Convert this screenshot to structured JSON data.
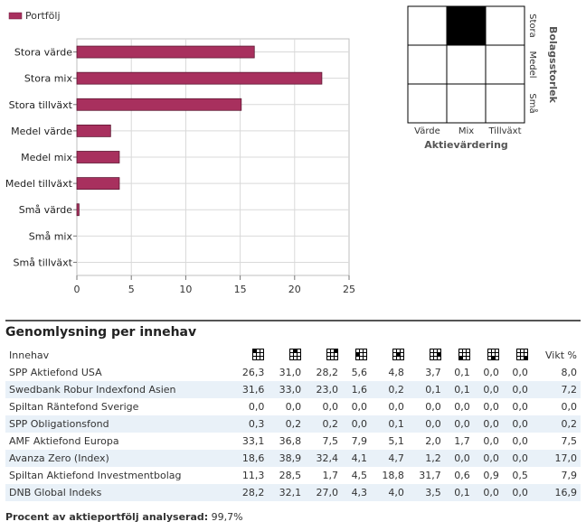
{
  "chart_data": {
    "type": "bar",
    "orientation": "horizontal",
    "legend": [
      "Portfölj"
    ],
    "legend_position": "top-left",
    "categories": [
      "Stora värde",
      "Stora mix",
      "Stora tillväxt",
      "Medel värde",
      "Medel mix",
      "Medel tillväxt",
      "Små värde",
      "Små mix",
      "Små tillväxt"
    ],
    "series": [
      {
        "name": "Portfölj",
        "values": [
          16.3,
          22.5,
          15.1,
          3.1,
          3.9,
          3.9,
          0.2,
          0.0,
          0.0
        ]
      }
    ],
    "xlim": [
      0,
      25
    ],
    "xticks": [
      0,
      5,
      10,
      15,
      20,
      25
    ],
    "grid": true,
    "bar_color": "#a8305e"
  },
  "style_box": {
    "columns": [
      "Värde",
      "Mix",
      "Tillväxt"
    ],
    "rows": [
      "Stora",
      "Medel",
      "Små"
    ],
    "xlabel": "Aktievärdering",
    "ylabel": "Bolagsstorlek",
    "filled_cell": "Stora mix"
  },
  "section_title": "Genomlysning per innehav",
  "table": {
    "headers": {
      "name": "Innehav",
      "weight": "Vikt %"
    },
    "style_columns": [
      "Stora värde",
      "Stora mix",
      "Stora tillväxt",
      "Medel värde",
      "Medel mix",
      "Medel tillväxt",
      "Små värde",
      "Små mix",
      "Små tillväxt"
    ],
    "rows": [
      {
        "name": "SPP Aktiefond USA",
        "values": [
          "26,3",
          "31,0",
          "28,2",
          "5,6",
          "4,8",
          "3,7",
          "0,1",
          "0,0",
          "0,0"
        ],
        "weight": "8,0"
      },
      {
        "name": "Swedbank Robur Indexfond Asien",
        "values": [
          "31,6",
          "33,0",
          "23,0",
          "1,6",
          "0,2",
          "0,1",
          "0,1",
          "0,0",
          "0,0"
        ],
        "weight": "7,2"
      },
      {
        "name": "Spiltan Räntefond Sverige",
        "values": [
          "0,0",
          "0,0",
          "0,0",
          "0,0",
          "0,0",
          "0,0",
          "0,0",
          "0,0",
          "0,0"
        ],
        "weight": "0,0"
      },
      {
        "name": "SPP Obligationsfond",
        "values": [
          "0,3",
          "0,2",
          "0,2",
          "0,0",
          "0,1",
          "0,0",
          "0,0",
          "0,0",
          "0,0"
        ],
        "weight": "0,2"
      },
      {
        "name": "AMF Aktiefond Europa",
        "values": [
          "33,1",
          "36,8",
          "7,5",
          "7,9",
          "5,1",
          "2,0",
          "1,7",
          "0,0",
          "0,0"
        ],
        "weight": "7,5"
      },
      {
        "name": "Avanza Zero (Index)",
        "values": [
          "18,6",
          "38,9",
          "32,4",
          "4,1",
          "4,7",
          "1,2",
          "0,0",
          "0,0",
          "0,0"
        ],
        "weight": "17,0"
      },
      {
        "name": "Spiltan Aktiefond Investmentbolag",
        "values": [
          "11,3",
          "28,5",
          "1,7",
          "4,5",
          "18,8",
          "31,7",
          "0,6",
          "0,9",
          "0,5"
        ],
        "weight": "7,9"
      },
      {
        "name": "DNB Global Indeks",
        "values": [
          "28,2",
          "32,1",
          "27,0",
          "4,3",
          "4,0",
          "3,5",
          "0,1",
          "0,0",
          "0,0"
        ],
        "weight": "16,9"
      }
    ]
  },
  "footer": {
    "label": "Procent av aktieportfölj analyserad:",
    "value": "99,7%"
  }
}
